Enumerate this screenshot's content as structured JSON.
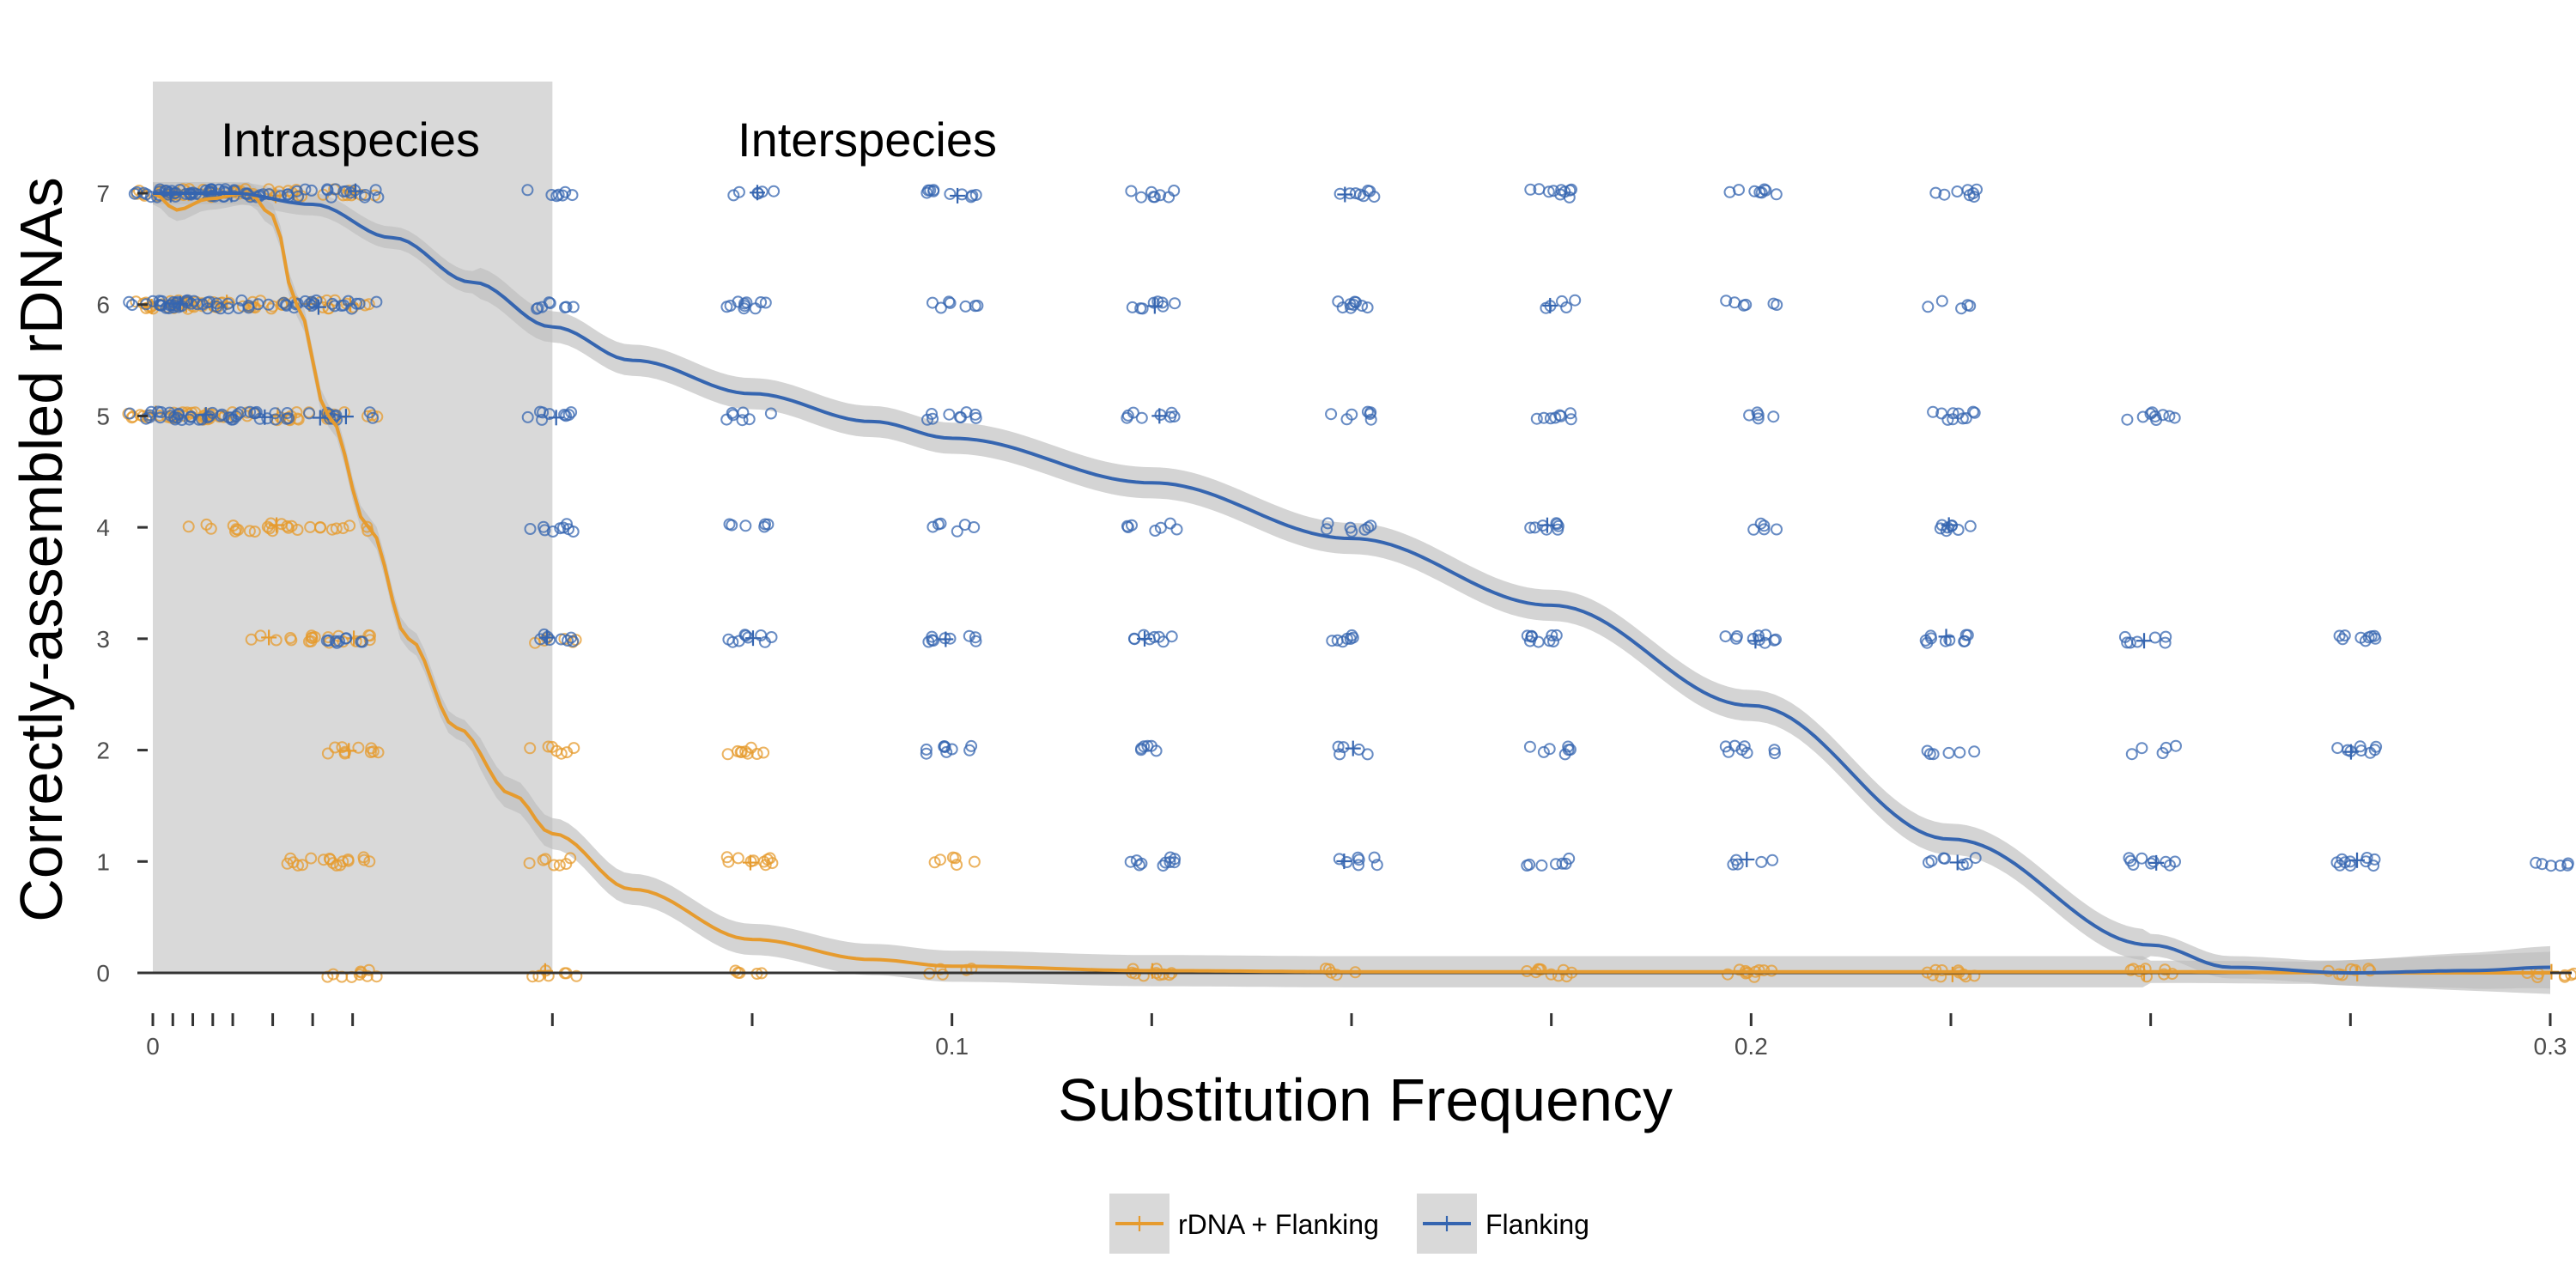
{
  "chart_data": {
    "type": "scatter",
    "xlabel": "Substitution Frequency",
    "ylabel": "Correctly-assembled rDNAs",
    "xlim": [
      0,
      0.3
    ],
    "ylim": [
      0,
      7
    ],
    "x_ticks": [
      {
        "value": 0,
        "label": "0"
      },
      {
        "value": 0.1,
        "label": "0.1"
      },
      {
        "value": 0.2,
        "label": "0.2"
      },
      {
        "value": 0.3,
        "label": "0.3"
      }
    ],
    "x_minor_ticks": [
      0.0025,
      0.005,
      0.0075,
      0.01,
      0.015,
      0.02,
      0.025,
      0.05,
      0.075,
      0.125,
      0.15,
      0.175,
      0.225,
      0.25,
      0.275
    ],
    "y_ticks": [
      0,
      1,
      2,
      3,
      4,
      5,
      6,
      7
    ],
    "grid": false,
    "legend_position": "bottom",
    "regions": [
      {
        "label": "Intraspecies",
        "x_range": [
          0,
          0.05
        ],
        "shaded": true
      },
      {
        "label": "Interspecies",
        "x_range": [
          0.05,
          0.3
        ],
        "shaded": false
      }
    ],
    "series": [
      {
        "name": "rDNA + Flanking",
        "color": "#e69b2e",
        "smooth_x": [
          0,
          0.003,
          0.007,
          0.012,
          0.015,
          0.018,
          0.022,
          0.027,
          0.032,
          0.038,
          0.045,
          0.05,
          0.06,
          0.075,
          0.09,
          0.1,
          0.125,
          0.15,
          0.2,
          0.25,
          0.275,
          0.3
        ],
        "smooth_y": [
          7.0,
          6.85,
          6.95,
          7.0,
          6.8,
          6.0,
          5.0,
          4.0,
          3.0,
          2.2,
          1.6,
          1.25,
          0.75,
          0.3,
          0.12,
          0.06,
          0.02,
          0.01,
          0.01,
          0.01,
          0.0,
          0.0
        ],
        "points": [
          {
            "x": 0.0,
            "y": [
              7,
              6,
              5
            ]
          },
          {
            "x": 0.0025,
            "y": [
              7,
              6,
              5
            ]
          },
          {
            "x": 0.005,
            "y": [
              7,
              6,
              5
            ]
          },
          {
            "x": 0.0075,
            "y": [
              7,
              6,
              5,
              4
            ]
          },
          {
            "x": 0.01,
            "y": [
              7,
              6,
              5
            ]
          },
          {
            "x": 0.015,
            "y": [
              7,
              6,
              5,
              4,
              3
            ]
          },
          {
            "x": 0.02,
            "y": [
              7,
              6,
              5,
              4,
              3,
              1
            ]
          },
          {
            "x": 0.025,
            "y": [
              7,
              6,
              5,
              4,
              3,
              2,
              1,
              0
            ]
          },
          {
            "x": 0.05,
            "y": [
              3,
              2,
              1,
              0
            ]
          },
          {
            "x": 0.075,
            "y": [
              2,
              1,
              0
            ]
          },
          {
            "x": 0.1,
            "y": [
              1,
              0
            ]
          },
          {
            "x": 0.125,
            "y": [
              0
            ]
          },
          {
            "x": 0.15,
            "y": [
              0
            ]
          },
          {
            "x": 0.175,
            "y": [
              0
            ]
          },
          {
            "x": 0.2,
            "y": [
              0
            ]
          },
          {
            "x": 0.225,
            "y": [
              0
            ]
          },
          {
            "x": 0.25,
            "y": [
              0
            ]
          },
          {
            "x": 0.275,
            "y": [
              0
            ]
          },
          {
            "x": 0.3,
            "y": [
              0
            ]
          }
        ]
      },
      {
        "name": "Flanking",
        "color": "#3565b0",
        "smooth_x": [
          0,
          0.01,
          0.02,
          0.03,
          0.04,
          0.05,
          0.06,
          0.075,
          0.09,
          0.1,
          0.125,
          0.15,
          0.175,
          0.2,
          0.225,
          0.25,
          0.26,
          0.275,
          0.29,
          0.3
        ],
        "smooth_y": [
          7.0,
          7.0,
          6.9,
          6.6,
          6.2,
          5.8,
          5.5,
          5.2,
          4.95,
          4.8,
          4.4,
          3.9,
          3.3,
          2.4,
          1.2,
          0.25,
          0.05,
          0.0,
          0.02,
          0.05
        ],
        "points": [
          {
            "x": 0.0,
            "y": [
              7,
              6,
              5
            ]
          },
          {
            "x": 0.0025,
            "y": [
              7,
              6,
              5
            ]
          },
          {
            "x": 0.005,
            "y": [
              7,
              6,
              5
            ]
          },
          {
            "x": 0.0075,
            "y": [
              7,
              6,
              5
            ]
          },
          {
            "x": 0.01,
            "y": [
              7,
              6,
              5
            ]
          },
          {
            "x": 0.015,
            "y": [
              7,
              6,
              5
            ]
          },
          {
            "x": 0.02,
            "y": [
              7,
              6,
              5
            ]
          },
          {
            "x": 0.025,
            "y": [
              7,
              6,
              5,
              3
            ]
          },
          {
            "x": 0.05,
            "y": [
              7,
              6,
              5,
              4,
              3
            ]
          },
          {
            "x": 0.075,
            "y": [
              7,
              6,
              5,
              4,
              3
            ]
          },
          {
            "x": 0.1,
            "y": [
              7,
              6,
              5,
              4,
              3,
              2
            ]
          },
          {
            "x": 0.125,
            "y": [
              7,
              6,
              5,
              4,
              3,
              2,
              1
            ]
          },
          {
            "x": 0.15,
            "y": [
              7,
              6,
              5,
              4,
              3,
              2,
              1
            ]
          },
          {
            "x": 0.175,
            "y": [
              7,
              6,
              5,
              4,
              3,
              2,
              1
            ]
          },
          {
            "x": 0.2,
            "y": [
              7,
              6,
              5,
              4,
              3,
              2,
              1
            ]
          },
          {
            "x": 0.225,
            "y": [
              7,
              6,
              5,
              4,
              3,
              2,
              1
            ]
          },
          {
            "x": 0.25,
            "y": [
              5,
              3,
              2,
              1
            ]
          },
          {
            "x": 0.275,
            "y": [
              3,
              2,
              1
            ]
          },
          {
            "x": 0.3,
            "y": [
              1
            ]
          }
        ]
      }
    ]
  }
}
